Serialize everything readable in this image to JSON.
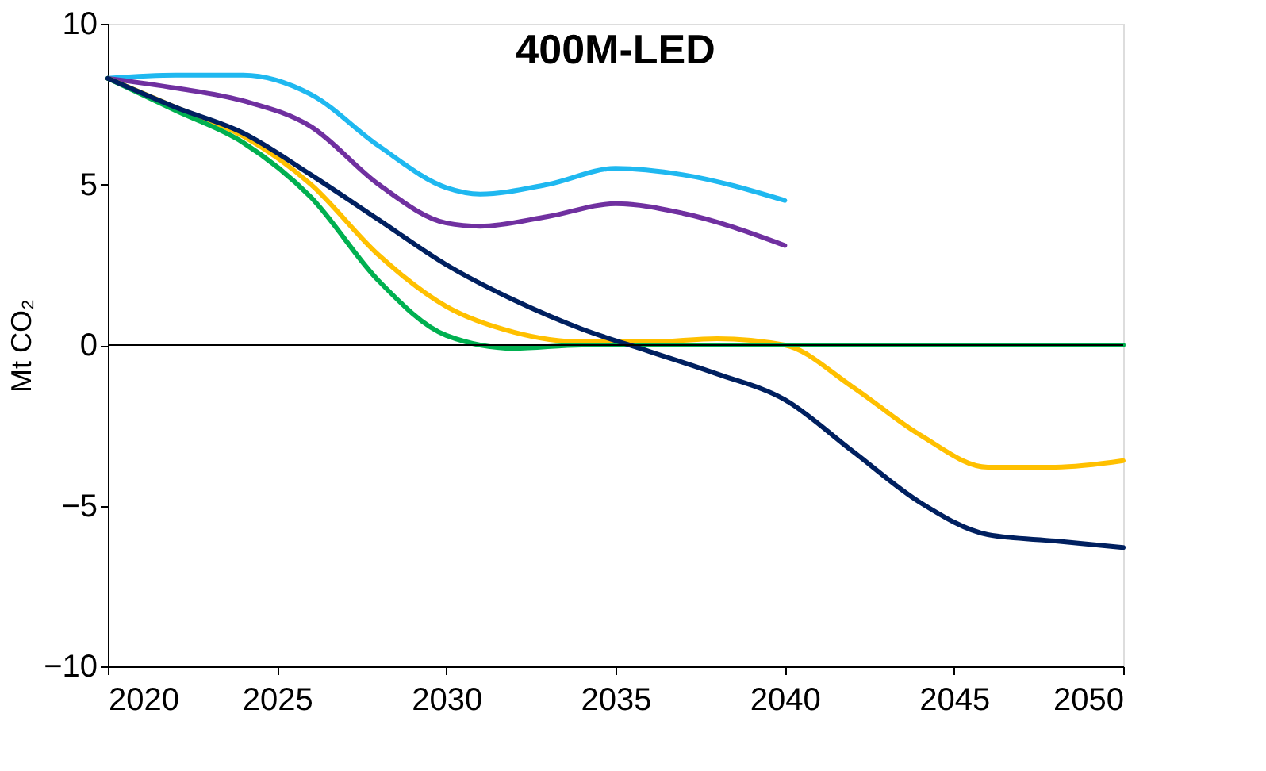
{
  "chart_data": {
    "type": "line",
    "title": "400M-LED",
    "ylabel": "Mt CO₂",
    "xlim": [
      2020,
      2050
    ],
    "xticks": [
      2020,
      2025,
      2030,
      2035,
      2040,
      2045,
      2050
    ],
    "ylim": [
      -10,
      10
    ],
    "yticks": [
      -10,
      -5,
      0,
      5,
      10
    ],
    "grid": false,
    "legend": false,
    "marker": "none",
    "line_style": "solid",
    "ref_lines": [
      {
        "axis": "y",
        "value": 0,
        "color": "#000000"
      }
    ],
    "series": [
      {
        "color": "#1fb8f0",
        "x": [
          2020,
          2022,
          2024,
          2026,
          2028,
          2030,
          2031,
          2033,
          2035,
          2037,
          2040
        ],
        "values": [
          8.3,
          8.4,
          8.4,
          7.8,
          6.2,
          4.9,
          4.7,
          5.0,
          5.5,
          5.3,
          4.5
        ]
      },
      {
        "color": "#7030a0",
        "x": [
          2020,
          2022,
          2024,
          2026,
          2028,
          2030,
          2031,
          2033,
          2035,
          2037,
          2040
        ],
        "values": [
          8.3,
          8.0,
          7.6,
          6.8,
          5.0,
          3.8,
          3.7,
          4.0,
          4.4,
          4.1,
          3.1
        ]
      },
      {
        "color": "#ffc000",
        "x": [
          2020,
          2022,
          2024,
          2026,
          2028,
          2030,
          2032,
          2034,
          2036,
          2038,
          2040,
          2042,
          2044,
          2046,
          2048,
          2050
        ],
        "values": [
          8.3,
          7.4,
          6.5,
          5.0,
          2.8,
          1.2,
          0.4,
          0.1,
          0.1,
          0.2,
          0.0,
          -1.3,
          -2.8,
          -3.8,
          -3.8,
          -3.6
        ]
      },
      {
        "color": "#00b050",
        "x": [
          2020,
          2022,
          2024,
          2026,
          2028,
          2030,
          2032,
          2034,
          2036,
          2040,
          2050
        ],
        "values": [
          8.3,
          7.3,
          6.3,
          4.6,
          2.0,
          0.3,
          -0.1,
          0.0,
          0.0,
          0.0,
          0.0
        ]
      },
      {
        "color": "#002060",
        "x": [
          2020,
          2022,
          2024,
          2026,
          2028,
          2030,
          2032,
          2034,
          2036,
          2038,
          2040,
          2042,
          2044,
          2046,
          2048,
          2050
        ],
        "values": [
          8.3,
          7.4,
          6.6,
          5.3,
          3.9,
          2.5,
          1.4,
          0.5,
          -0.2,
          -0.9,
          -1.7,
          -3.3,
          -4.9,
          -5.9,
          -6.1,
          -6.3
        ]
      }
    ]
  }
}
